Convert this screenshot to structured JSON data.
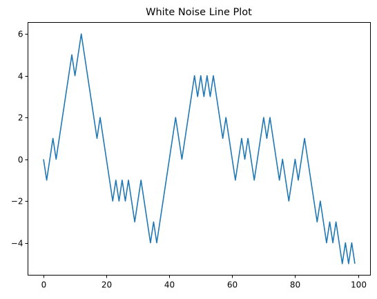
{
  "chart_data": {
    "type": "line",
    "title": "White Noise Line Plot",
    "xlabel": "",
    "ylabel": "",
    "xlim": [
      -4.95,
      103.95
    ],
    "ylim": [
      -5.55,
      6.55
    ],
    "grid": false,
    "x_ticks": [
      0,
      20,
      40,
      60,
      80,
      100
    ],
    "x_tick_labels": [
      "0",
      "20",
      "40",
      "60",
      "80",
      "100"
    ],
    "y_ticks": [
      -4,
      -2,
      0,
      2,
      4,
      6
    ],
    "y_tick_labels": [
      "−4",
      "−2",
      "0",
      "2",
      "4",
      "6"
    ],
    "series": [
      {
        "color": "#1f77b4",
        "values": [
          0,
          -1,
          0,
          1,
          0,
          1,
          2,
          3,
          4,
          5,
          4,
          5,
          6,
          5,
          4,
          3,
          2,
          1,
          2,
          1,
          0,
          -1,
          -2,
          -1,
          -2,
          -1,
          -2,
          -1,
          -2,
          -3,
          -2,
          -1,
          -2,
          -3,
          -4,
          -3,
          -4,
          -3,
          -2,
          -1,
          0,
          1,
          2,
          1,
          0,
          1,
          2,
          3,
          4,
          3,
          4,
          3,
          4,
          3,
          4,
          3,
          2,
          1,
          2,
          1,
          0,
          -1,
          0,
          1,
          0,
          1,
          0,
          -1,
          0,
          1,
          2,
          1,
          2,
          1,
          0,
          -1,
          0,
          -1,
          -2,
          -1,
          0,
          -1,
          0,
          1,
          0,
          -1,
          -2,
          -3,
          -2,
          -3,
          -4,
          -3,
          -4,
          -3,
          -4,
          -5,
          -4,
          -5,
          -4,
          -5
        ]
      }
    ]
  }
}
